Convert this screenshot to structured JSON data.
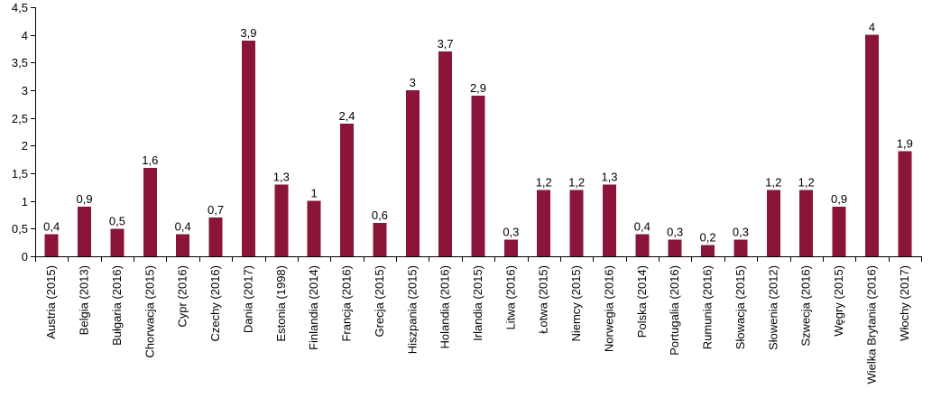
{
  "chart_data": {
    "type": "bar",
    "title": "",
    "xlabel": "",
    "ylabel": "",
    "ylim": [
      0,
      4.5
    ],
    "y_ticks": [
      "0",
      "0,5",
      "1",
      "1,5",
      "2",
      "2,5",
      "3",
      "3,5",
      "4",
      "4,5"
    ],
    "y_tick_values": [
      0,
      0.5,
      1,
      1.5,
      2,
      2.5,
      3,
      3.5,
      4,
      4.5
    ],
    "grid": false,
    "legend": "none",
    "bar_color": "#8b1538",
    "categories": [
      "Austria (2015)",
      "Belgia (2013)",
      "Bułgaria (2016)",
      "Chorwacja (2015)",
      "Cypr (2016)",
      "Czechy (2016)",
      "Dania (2017)",
      "Estonia (1998)",
      "Finlandia (2014)",
      "Francja (2016)",
      "Grecja (2015)",
      "Hiszpania (2015)",
      "Holandia (2016)",
      "Irlandia (2015)",
      "Litwa (2016)",
      "Łotwa (2015)",
      "Niemcy (2015)",
      "Norwegia (2016)",
      "Polska (2014)",
      "Portugalia (2016)",
      "Rumunia (2016)",
      "Słowacja (2015)",
      "Słowenia (2012)",
      "Szwecja (2016)",
      "Węgry (2015)",
      "Wielka Brytania (2016)",
      "Włochy (2017)"
    ],
    "values": [
      0.4,
      0.9,
      0.5,
      1.6,
      0.4,
      0.7,
      3.9,
      1.3,
      1,
      2.4,
      0.6,
      3,
      3.7,
      2.9,
      0.3,
      1.2,
      1.2,
      1.3,
      0.4,
      0.3,
      0.2,
      0.3,
      1.2,
      1.2,
      0.9,
      4,
      1.9
    ],
    "data_labels": [
      "0,4",
      "0,9",
      "0,5",
      "1,6",
      "0,4",
      "0,7",
      "3,9",
      "1,3",
      "1",
      "2,4",
      "0,6",
      "3",
      "3,7",
      "2,9",
      "0,3",
      "1,2",
      "1,2",
      "1,3",
      "0,4",
      "0,3",
      "0,2",
      "0,3",
      "1,2",
      "1,2",
      "0,9",
      "4",
      "1,9"
    ]
  }
}
